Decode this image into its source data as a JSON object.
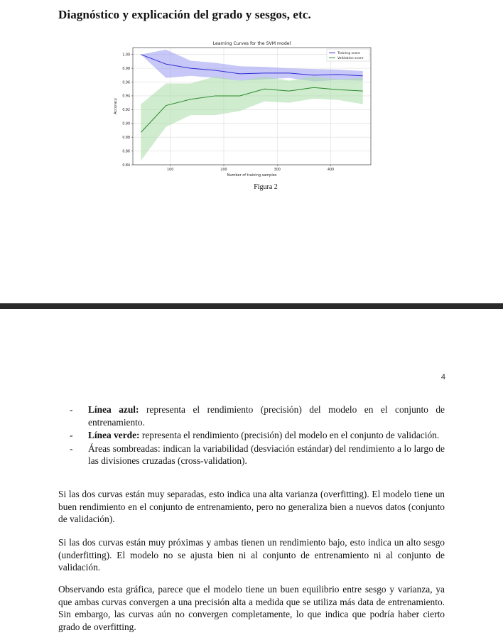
{
  "page1": {
    "heading": "Diagnóstico y explicación del grado y sesgos, etc.",
    "caption": "Figura 2"
  },
  "page2": {
    "page_number": "4",
    "bullets": [
      {
        "dash": "-",
        "bold": "Línea azul:",
        "text": " representa el rendimiento (precisión) del modelo en el conjunto de entrenamiento."
      },
      {
        "dash": "-",
        "bold": "Línea verde:",
        "text": " representa el rendimiento (precisión) del modelo en el conjunto de validación."
      },
      {
        "dash": "-",
        "bold": "",
        "text": "Áreas sombreadas: indican la variabilidad (desviación estándar) del rendimiento a lo largo de las divisiones cruzadas (cross-validation)."
      }
    ],
    "paragraphs": [
      "Si las dos curvas están muy separadas, esto indica una alta varianza (overfitting). El modelo tiene un buen rendimiento en el conjunto de entrenamiento, pero no generaliza bien a nuevos datos (conjunto de validación).",
      "Si las dos curvas están muy próximas y ambas tienen un rendimiento bajo, esto indica un alto sesgo (underfitting). El modelo no se ajusta bien ni al conjunto de entrenamiento ni al conjunto de validación.",
      "Observando esta gráfica, parece que el modelo tiene un buen equilibrio entre sesgo y varianza, ya que ambas curvas convergen a una precisión alta a medida que se utiliza más data de entrenamiento. Sin embargo, las curvas aún no convergen completamente, lo que indica que podría haber cierto grado de overfitting."
    ]
  },
  "chart_data": {
    "type": "line",
    "title": "Learning Curves for the SVM model",
    "xlabel": "Number of training samples",
    "ylabel": "Accuracy",
    "xlim": [
      30,
      475
    ],
    "ylim": [
      0.84,
      1.01
    ],
    "xticks": [
      100,
      200,
      300,
      400
    ],
    "yticks": [
      0.84,
      0.86,
      0.88,
      0.9,
      0.92,
      0.94,
      0.96,
      0.98,
      1.0
    ],
    "ytick_labels": [
      "0.84",
      "0.86",
      "0.88",
      "0.90",
      "0.92",
      "0.94",
      "0.96",
      "0.98",
      "1.00"
    ],
    "grid": true,
    "legend_position": "top-right",
    "x": [
      45,
      92,
      138,
      184,
      230,
      276,
      322,
      368,
      414,
      460
    ],
    "series": [
      {
        "name": "Training score",
        "color": "#2d2dd0",
        "band_color": "#9b9bf2",
        "values": [
          1.0,
          0.986,
          0.98,
          0.977,
          0.972,
          0.973,
          0.973,
          0.97,
          0.971,
          0.969
        ],
        "upper": [
          1.0,
          1.007,
          0.991,
          0.988,
          0.983,
          0.982,
          0.98,
          0.979,
          0.978,
          0.976
        ],
        "lower": [
          1.0,
          0.966,
          0.969,
          0.966,
          0.962,
          0.964,
          0.966,
          0.961,
          0.963,
          0.962
        ]
      },
      {
        "name": "Validation score",
        "color": "#2a8a2a",
        "band_color": "#a8dca8",
        "values": [
          0.887,
          0.926,
          0.935,
          0.94,
          0.94,
          0.95,
          0.947,
          0.952,
          0.949,
          0.947
        ],
        "upper": [
          0.928,
          0.958,
          0.958,
          0.968,
          0.962,
          0.968,
          0.962,
          0.968,
          0.964,
          0.966
        ],
        "lower": [
          0.846,
          0.895,
          0.912,
          0.912,
          0.918,
          0.932,
          0.93,
          0.936,
          0.934,
          0.928
        ]
      }
    ]
  }
}
